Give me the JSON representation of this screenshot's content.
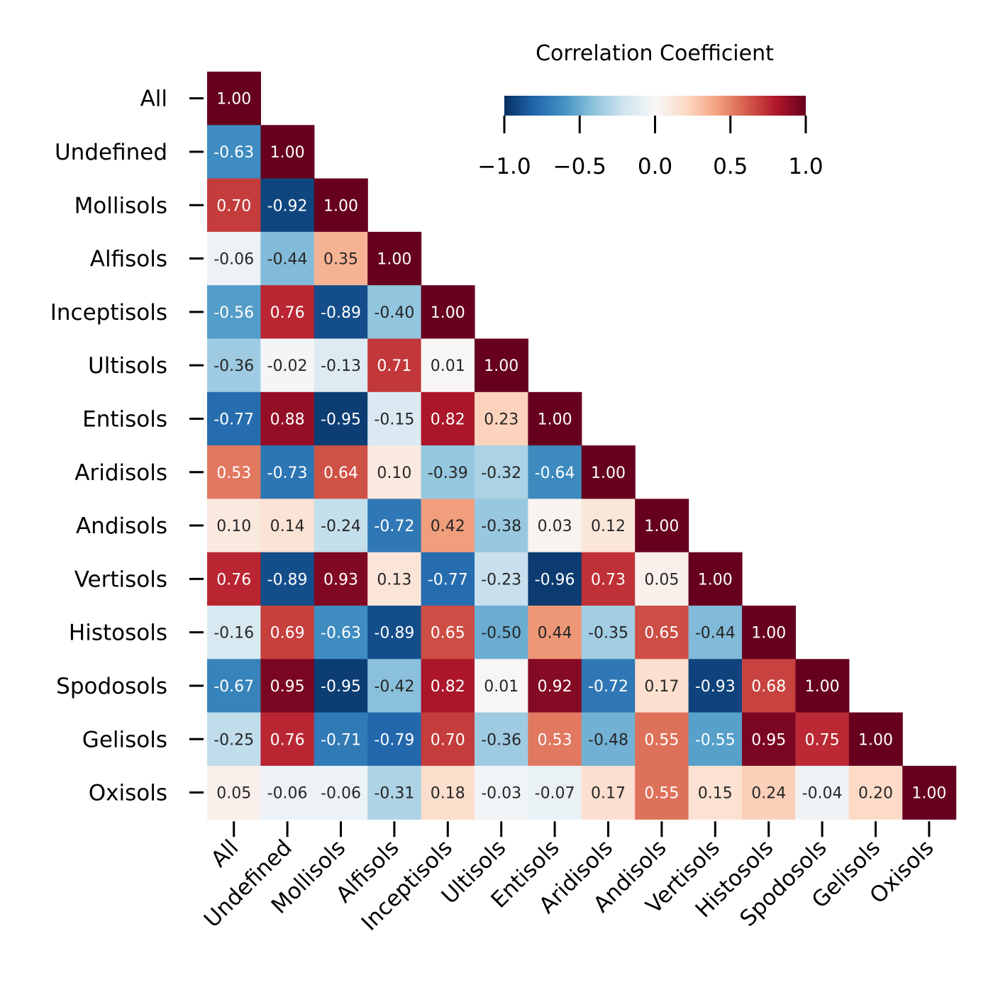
{
  "chart_data": {
    "type": "heatmap",
    "labels": [
      "All",
      "Undefined",
      "Mollisols",
      "Alfisols",
      "Inceptisols",
      "Ultisols",
      "Entisols",
      "Aridisols",
      "Andisols",
      "Vertisols",
      "Histosols",
      "Spodosols",
      "Gelisols",
      "Oxisols"
    ],
    "matrix": [
      [
        1.0
      ],
      [
        -0.63,
        1.0
      ],
      [
        0.7,
        -0.92,
        1.0
      ],
      [
        -0.06,
        -0.44,
        0.35,
        1.0
      ],
      [
        -0.56,
        0.76,
        -0.89,
        -0.4,
        1.0
      ],
      [
        -0.36,
        -0.02,
        -0.13,
        0.71,
        0.01,
        1.0
      ],
      [
        -0.77,
        0.88,
        -0.95,
        -0.15,
        0.82,
        0.23,
        1.0
      ],
      [
        0.53,
        -0.73,
        0.64,
        0.1,
        -0.39,
        -0.32,
        -0.64,
        1.0
      ],
      [
        0.1,
        0.14,
        -0.24,
        -0.72,
        0.42,
        -0.38,
        0.03,
        0.12,
        1.0
      ],
      [
        0.76,
        -0.89,
        0.93,
        0.13,
        -0.77,
        -0.23,
        -0.96,
        0.73,
        0.05,
        1.0
      ],
      [
        -0.16,
        0.69,
        -0.63,
        -0.89,
        0.65,
        -0.5,
        0.44,
        -0.35,
        0.65,
        -0.44,
        1.0
      ],
      [
        -0.67,
        0.95,
        -0.95,
        -0.42,
        0.82,
        0.01,
        0.92,
        -0.72,
        0.17,
        -0.93,
        0.68,
        1.0
      ],
      [
        -0.25,
        0.76,
        -0.71,
        -0.79,
        0.7,
        -0.36,
        0.53,
        -0.48,
        0.55,
        -0.55,
        0.95,
        0.75,
        1.0
      ],
      [
        0.05,
        -0.06,
        -0.06,
        -0.31,
        0.18,
        -0.03,
        -0.07,
        0.17,
        0.55,
        0.15,
        0.24,
        -0.04,
        0.2,
        1.0
      ]
    ],
    "colorbar": {
      "title": "Correlation Coefficient",
      "range": [
        -1.0,
        1.0
      ],
      "ticks": [
        -1.0,
        -0.5,
        0.0,
        0.5,
        1.0
      ],
      "tick_labels": [
        "−1.0",
        "−0.5",
        "0.0",
        "0.5",
        "1.0"
      ],
      "colormap": "RdBu_r",
      "colormap_stops": [
        "#053061",
        "#2166ac",
        "#4393c3",
        "#92c5de",
        "#d1e5f0",
        "#f7f7f7",
        "#fddbc7",
        "#f4a582",
        "#d6604d",
        "#b2182b",
        "#67001f"
      ],
      "orientation": "horizontal",
      "placement": "top-right"
    },
    "value_format": "2 decimals",
    "lower_triangle_only": true
  }
}
